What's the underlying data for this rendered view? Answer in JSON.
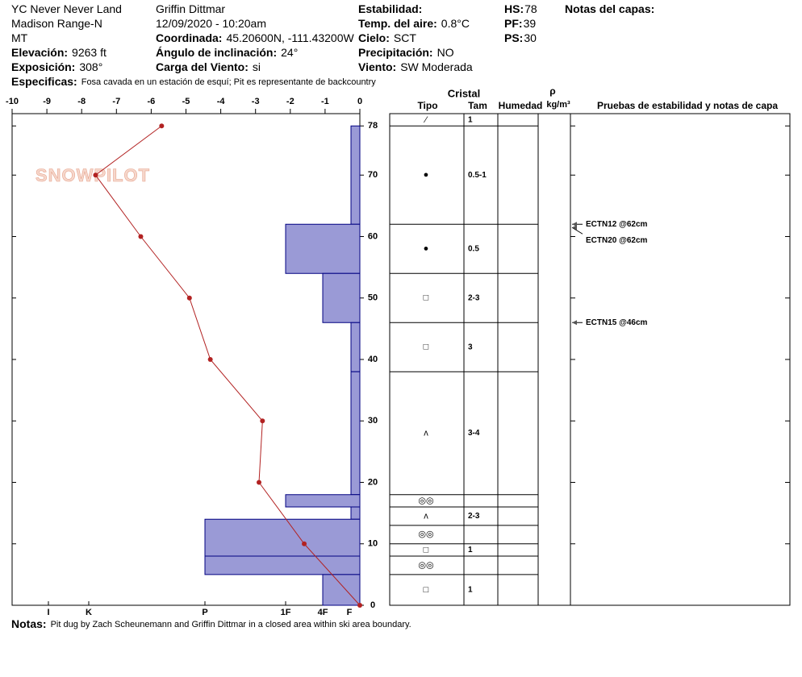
{
  "header": {
    "columns": [
      [
        {
          "text": "YC Never Never Land"
        },
        {
          "text": "Madison Range-N"
        },
        {
          "text": "MT"
        },
        {
          "label": "Elevación:",
          "value": "9263 ft"
        },
        {
          "label": "Exposición:",
          "value": "308°"
        }
      ],
      [
        {
          "text": "Griffin Dittmar"
        },
        {
          "text": "12/09/2020 - 10:20am"
        },
        {
          "label": "Coordinada:",
          "value": "45.20600N, -111.43200W"
        },
        {
          "label": "Ángulo de inclinación:",
          "value": "24°"
        },
        {
          "label": "Carga del Viento:",
          "value": "si"
        }
      ],
      [
        {
          "label": "Estabilidad:"
        },
        {
          "label": "Temp. del aire:",
          "value": "0.8°C"
        },
        {
          "label": "Cielo:",
          "value": "SCT"
        },
        {
          "label": "Precipitación:",
          "value": "NO"
        },
        {
          "label": "Viento:",
          "value": "SW Moderada"
        }
      ],
      [
        {
          "label": "HS:",
          "value": "78"
        },
        {
          "label": "PF:",
          "value": "39"
        },
        {
          "label": "PS:",
          "value": "30"
        }
      ],
      [
        {
          "label": "Notas del capas:"
        }
      ]
    ],
    "specifics": {
      "label": "Especificas:",
      "value": "Fosa cavada en un estación de esquí; Pit es representante de backcountry"
    }
  },
  "chart_data": {
    "type": "snow_profile",
    "logo": "SNOWPILOT",
    "xlim": [
      -10,
      0
    ],
    "xticks": [
      -10,
      -9,
      -8,
      -7,
      -6,
      -5,
      -4,
      -3,
      -2,
      -1,
      0
    ],
    "ylim": [
      0,
      80
    ],
    "yticks": [
      0,
      10,
      20,
      30,
      40,
      50,
      60,
      70,
      78
    ],
    "temperature": {
      "color": "#b22222",
      "heights": [
        78,
        70,
        60,
        50,
        40,
        30,
        20,
        10,
        0
      ],
      "values": [
        -5.7,
        -7.6,
        -6.3,
        -4.9,
        -4.3,
        -2.8,
        -2.9,
        -1.6,
        0
      ]
    },
    "hardness_ticks": [
      "I",
      "K",
      "P",
      "1F",
      "4F",
      "F"
    ],
    "hardness": {
      "color": "#9a9ad6",
      "layers": [
        {
          "top": 78,
          "bottom": 62,
          "hardness": "F"
        },
        {
          "top": 62,
          "bottom": 54,
          "hardness": "1F"
        },
        {
          "top": 54,
          "bottom": 46,
          "hardness": "4F"
        },
        {
          "top": 46,
          "bottom": 38,
          "hardness": "F"
        },
        {
          "top": 38,
          "bottom": 18,
          "hardness": "F"
        },
        {
          "top": 18,
          "bottom": 16,
          "hardness": "1F"
        },
        {
          "top": 16,
          "bottom": 14,
          "hardness": "F"
        },
        {
          "top": 14,
          "bottom": 8,
          "hardness": "P"
        },
        {
          "top": 8,
          "bottom": 5,
          "hardness": "P"
        },
        {
          "top": 5,
          "bottom": 0,
          "hardness": "4F"
        }
      ]
    },
    "table": {
      "title": "Cristal",
      "columns": [
        "Tipo",
        "Tam",
        "Humedad"
      ],
      "density": "ρ",
      "density_unit": "kg/m³",
      "tests_title": "Pruebas de estabilidad y notas de capa",
      "surface": {
        "type": "⁄",
        "size": "1"
      },
      "layers": [
        {
          "top": 78,
          "bottom": 62,
          "type": "●",
          "size": "0.5-1"
        },
        {
          "top": 62,
          "bottom": 54,
          "type": "●",
          "size": "0.5"
        },
        {
          "top": 54,
          "bottom": 46,
          "type": "□",
          "size": "2-3"
        },
        {
          "top": 46,
          "bottom": 38,
          "type": "□",
          "size": "3"
        },
        {
          "top": 38,
          "bottom": 18,
          "type": "ʌ",
          "size": "3-4"
        },
        {
          "top": 18,
          "bottom": 16,
          "type": "◎◎"
        },
        {
          "top": 16,
          "bottom": 13,
          "type": "ʌ",
          "size": "2-3"
        },
        {
          "top": 13,
          "bottom": 10,
          "type": "◎◎"
        },
        {
          "top": 10,
          "bottom": 8,
          "type": "□",
          "size": "1"
        },
        {
          "top": 8,
          "bottom": 5,
          "type": "◎◎"
        },
        {
          "top": 5,
          "bottom": 0,
          "type": "□",
          "size": "1"
        }
      ]
    },
    "tests": [
      {
        "height": 62,
        "label": "ECTN12 @62cm"
      },
      {
        "height": 62,
        "label": "ECTN20 @62cm"
      },
      {
        "height": 46,
        "label": "ECTN15 @46cm"
      }
    ]
  },
  "notes": {
    "label": "Notas:",
    "value": "Pit dug by Zach Scheunemann and Griffin Dittmar in a closed area within ski area boundary."
  }
}
